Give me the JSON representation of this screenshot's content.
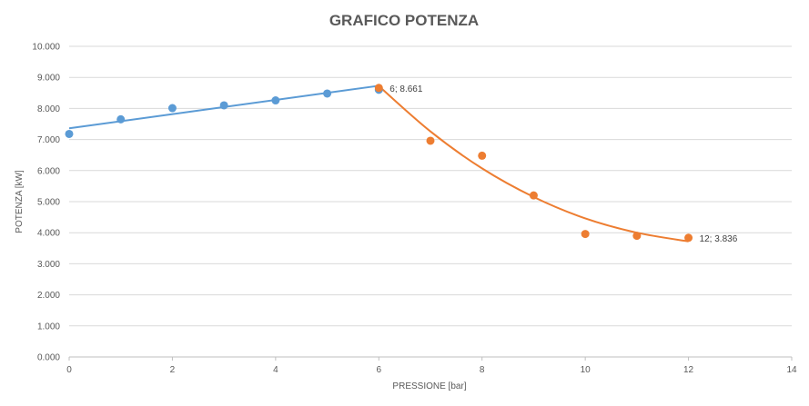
{
  "chart_data": {
    "type": "scatter",
    "title": "GRAFICO POTENZA",
    "xlabel": "PRESSIONE [bar]",
    "ylabel": "POTENZA [kW]",
    "xlim": [
      0,
      14
    ],
    "ylim": [
      0,
      10000
    ],
    "x_ticks": [
      0,
      2,
      4,
      6,
      8,
      10,
      12,
      14
    ],
    "x_tick_labels": [
      "0",
      "2",
      "4",
      "6",
      "8",
      "10",
      "12",
      "14"
    ],
    "y_ticks": [
      0,
      1000,
      2000,
      3000,
      4000,
      5000,
      6000,
      7000,
      8000,
      9000,
      10000
    ],
    "y_tick_labels": [
      "0.000",
      "1.000",
      "2.000",
      "3.000",
      "4.000",
      "5.000",
      "6.000",
      "7.000",
      "8.000",
      "9.000",
      "10.000"
    ],
    "grid": "horizontal",
    "series": [
      {
        "color": "#5b9bd5",
        "points": [
          {
            "x": 0,
            "y": 7180
          },
          {
            "x": 1,
            "y": 7650
          },
          {
            "x": 2,
            "y": 8010
          },
          {
            "x": 3,
            "y": 8100
          },
          {
            "x": 4,
            "y": 8260
          },
          {
            "x": 5,
            "y": 8480
          },
          {
            "x": 6,
            "y": 8600
          }
        ],
        "trendline": {
          "type": "linear",
          "x_range": [
            0,
            6
          ],
          "y_range": [
            7360,
            8730
          ]
        }
      },
      {
        "color": "#ed7d31",
        "points": [
          {
            "x": 6,
            "y": 8661
          },
          {
            "x": 7,
            "y": 6960
          },
          {
            "x": 8,
            "y": 6480
          },
          {
            "x": 9,
            "y": 5200
          },
          {
            "x": 10,
            "y": 3960
          },
          {
            "x": 11,
            "y": 3900
          },
          {
            "x": 12,
            "y": 3836
          }
        ],
        "trendline": {
          "type": "polynomial",
          "x_range": [
            6,
            12
          ],
          "y_values": [
            8720,
            7260,
            6070,
            5150,
            4460,
            4000,
            3720
          ]
        }
      }
    ],
    "annotations": [
      {
        "x": 6,
        "y": 8661,
        "text": "6; 8.661"
      },
      {
        "x": 12,
        "y": 3836,
        "text": "12; 3.836"
      }
    ]
  }
}
